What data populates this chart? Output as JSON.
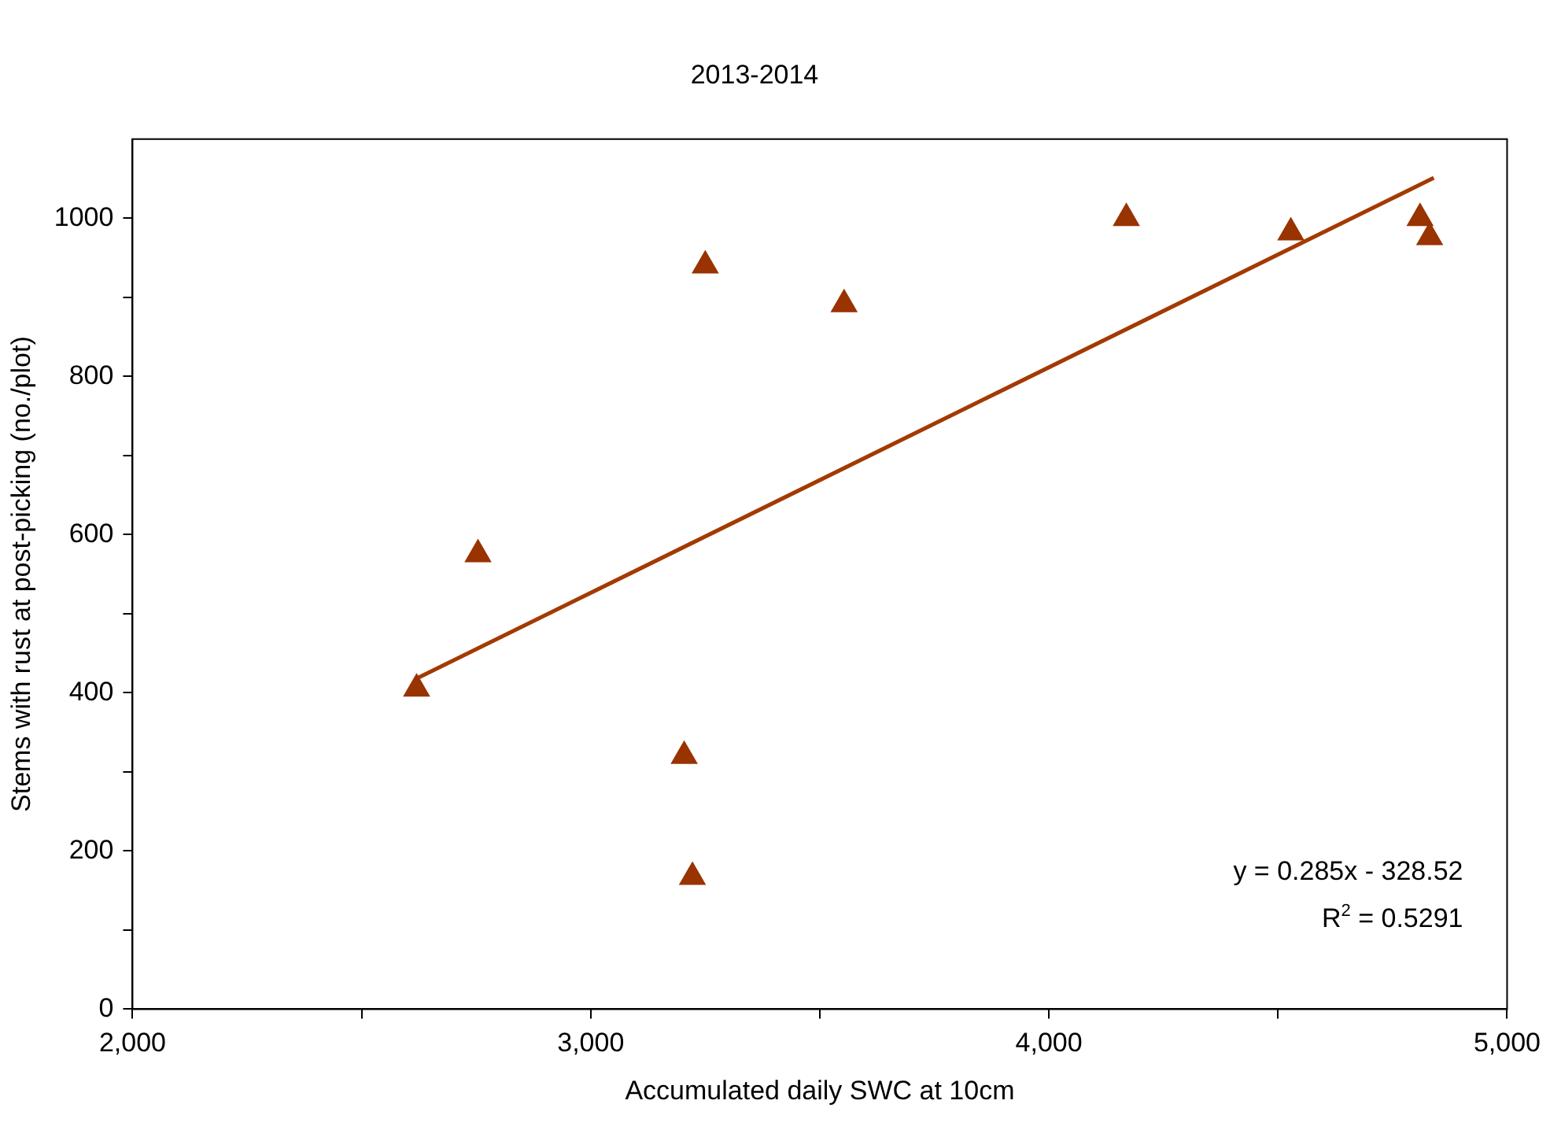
{
  "chart_data": {
    "type": "scatter",
    "title": "2013-2014",
    "xlabel": "Accumulated daily SWC at 10cm",
    "ylabel": "Stems with rust at post-picking (no./plot)",
    "series": [
      {
        "type": "scatter",
        "marker": "triangle",
        "color": "#993300",
        "x": [
          2620,
          2754,
          3204,
          3222,
          3250,
          3553,
          4169,
          4528,
          4810,
          4831
        ],
        "values": [
          405,
          575,
          320,
          167,
          940,
          891,
          1000,
          982,
          1000,
          976
        ]
      },
      {
        "type": "line",
        "marker": "none",
        "color": "#a33a00",
        "x": [
          2620,
          4840
        ],
        "values": [
          418,
          1051
        ]
      }
    ],
    "xlim": [
      2000,
      5000
    ],
    "xticks": [
      {
        "value": 2000,
        "label": "2,000"
      },
      {
        "value": 2500,
        "label": null
      },
      {
        "value": 3000,
        "label": "3,000"
      },
      {
        "value": 3500,
        "label": null
      },
      {
        "value": 4000,
        "label": "4,000"
      },
      {
        "value": 4500,
        "label": null
      },
      {
        "value": 5000,
        "label": "5,000"
      }
    ],
    "ylim": [
      0,
      1100
    ],
    "yticks": [
      0,
      {
        "value": 100,
        "label": null
      },
      200,
      {
        "value": 300,
        "label": null
      },
      400,
      {
        "value": 500,
        "label": null
      },
      600,
      {
        "value": 700,
        "label": null
      },
      800,
      {
        "value": 900,
        "label": null
      },
      1000
    ],
    "grid": false,
    "legend": false,
    "annotations": [
      "y = 0.285x - 328.52",
      "R$^{2}$ = 0.5291"
    ]
  }
}
